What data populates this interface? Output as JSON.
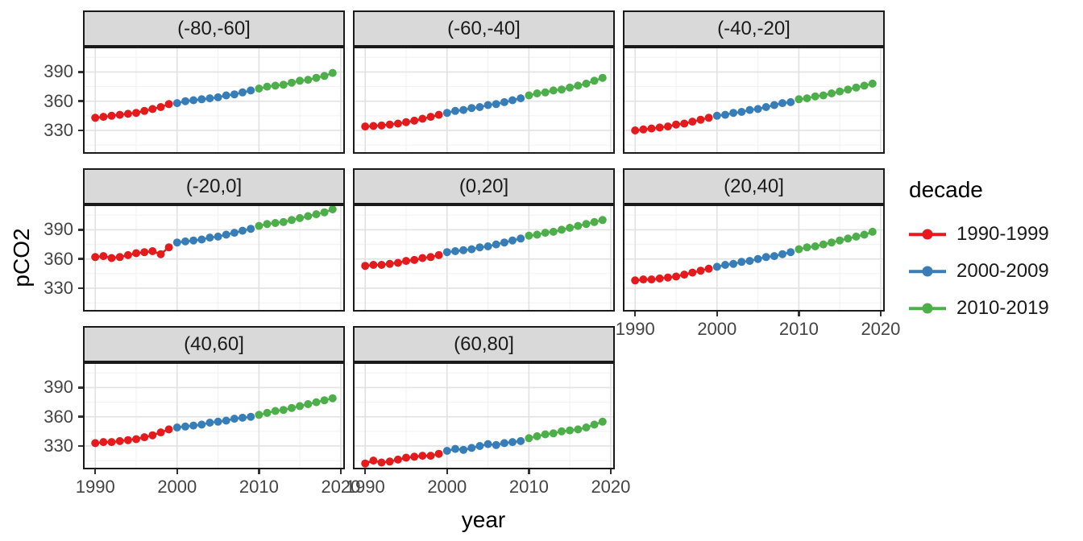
{
  "chart_data": {
    "type": "line",
    "title": "",
    "xlabel": "year",
    "ylabel": "pCO2",
    "x_start": 1990,
    "x_ticks": [
      1990,
      2000,
      2010,
      2020
    ],
    "y_ticks": [
      330,
      360,
      390
    ],
    "xlim": [
      1988.5,
      2020.5
    ],
    "ylim": [
      306,
      416
    ],
    "grid": true,
    "legend": {
      "title": "decade",
      "position": "right"
    },
    "series": [
      {
        "name": "1990-1999",
        "color": "#E41A1C"
      },
      {
        "name": "2000-2009",
        "color": "#377EB8"
      },
      {
        "name": "2010-2019",
        "color": "#4DAF4A"
      }
    ],
    "facets": [
      {
        "label": "(-80,-60]",
        "values": [
          343,
          344,
          345,
          346,
          347,
          348,
          350,
          352,
          354,
          357,
          358,
          360,
          361,
          362,
          363,
          364,
          366,
          367,
          369,
          371,
          373,
          375,
          376,
          377,
          379,
          381,
          382,
          384,
          386,
          389
        ]
      },
      {
        "label": "(-60,-40]",
        "values": [
          334,
          334.5,
          335,
          336,
          337,
          338.5,
          340,
          342,
          344,
          346,
          348,
          350,
          351,
          353,
          354,
          356,
          357,
          359,
          361,
          363,
          366,
          368,
          369,
          371,
          372,
          374,
          376,
          378,
          381,
          384
        ]
      },
      {
        "label": "(-40,-20]",
        "values": [
          330,
          331,
          332,
          333,
          334,
          336,
          337,
          339,
          341,
          343,
          345,
          346,
          348,
          349,
          351,
          352,
          354,
          356,
          358,
          359,
          362,
          363,
          365,
          366,
          368,
          370,
          372,
          374,
          376,
          378
        ]
      },
      {
        "label": "(-20,0]",
        "values": [
          362,
          363,
          361,
          362,
          364,
          366,
          367,
          368,
          365,
          372,
          377,
          378,
          379,
          380,
          382,
          383,
          385,
          387,
          389,
          391,
          394,
          396,
          397,
          398,
          400,
          402,
          404,
          406,
          408,
          411
        ]
      },
      {
        "label": "(0,20]",
        "values": [
          353,
          354,
          354,
          355,
          356,
          358,
          359,
          361,
          362,
          364,
          367,
          368,
          369,
          370,
          372,
          373,
          375,
          377,
          379,
          381,
          384,
          385,
          387,
          388,
          390,
          392,
          394,
          396,
          398,
          400
        ]
      },
      {
        "label": "(20,40]",
        "values": [
          338,
          339,
          339,
          340,
          341,
          342,
          344,
          346,
          348,
          350,
          352,
          354,
          355,
          357,
          358,
          360,
          362,
          363,
          365,
          367,
          370,
          372,
          373,
          375,
          377,
          379,
          381,
          383,
          385,
          388
        ]
      },
      {
        "label": "(40,60]",
        "values": [
          333,
          334,
          334,
          335,
          336,
          337,
          339,
          341,
          344,
          347,
          349,
          350,
          351,
          352,
          354,
          355,
          356,
          358,
          359,
          360,
          362,
          364,
          366,
          367,
          369,
          371,
          373,
          375,
          377,
          379
        ]
      },
      {
        "label": "(60,80]",
        "values": [
          312,
          315,
          313,
          314,
          316,
          318,
          319,
          320,
          320,
          322,
          325,
          327,
          326,
          328,
          330,
          332,
          331,
          333,
          334,
          335,
          338,
          340,
          342,
          343,
          345,
          346,
          347,
          349,
          352,
          355
        ]
      }
    ]
  }
}
